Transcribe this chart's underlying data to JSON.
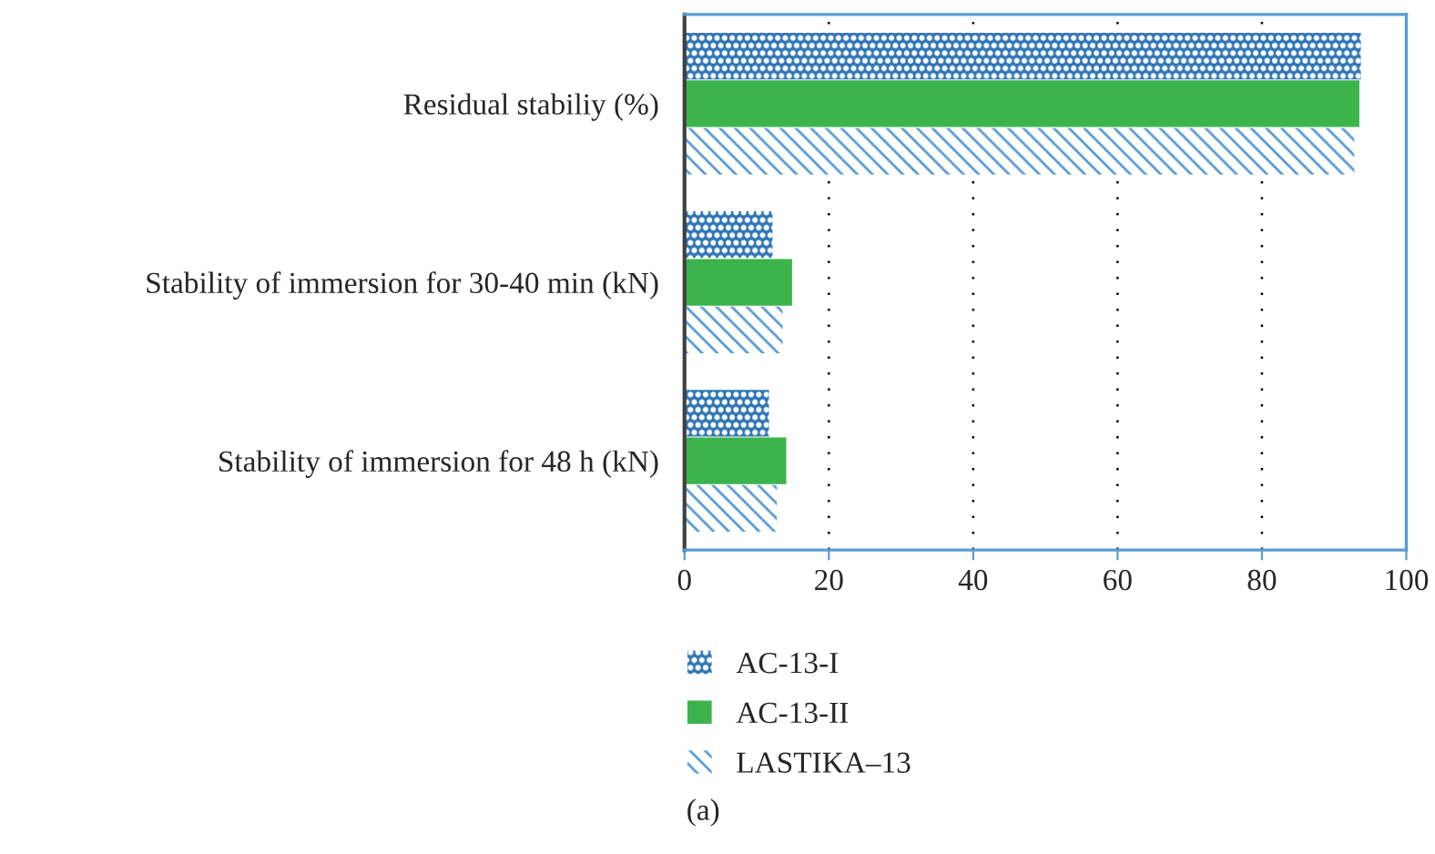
{
  "chart_data": {
    "type": "bar",
    "orientation": "horizontal",
    "categories": [
      "Residual stabiliy (%)",
      "Stability of immersion for 30-40 min (kN)",
      "Stability of immersion for 48 h (kN)"
    ],
    "series": [
      {
        "name": "AC-13-I",
        "color": "#2e75b6",
        "values": [
          93.7,
          12.2,
          11.7
        ]
      },
      {
        "name": "AC-13-II",
        "color": "#3cb44b",
        "values": [
          93.5,
          14.9,
          14.1
        ]
      },
      {
        "name": "LASTIKA–13",
        "color": "#5b9bd5",
        "values": [
          92.8,
          13.6,
          12.8
        ]
      }
    ],
    "xlim": [
      0,
      100
    ],
    "xticks": [
      0,
      20,
      40,
      60,
      80,
      100
    ],
    "grid": "x",
    "legend": "bottom",
    "annotations": [
      "(a)"
    ]
  }
}
